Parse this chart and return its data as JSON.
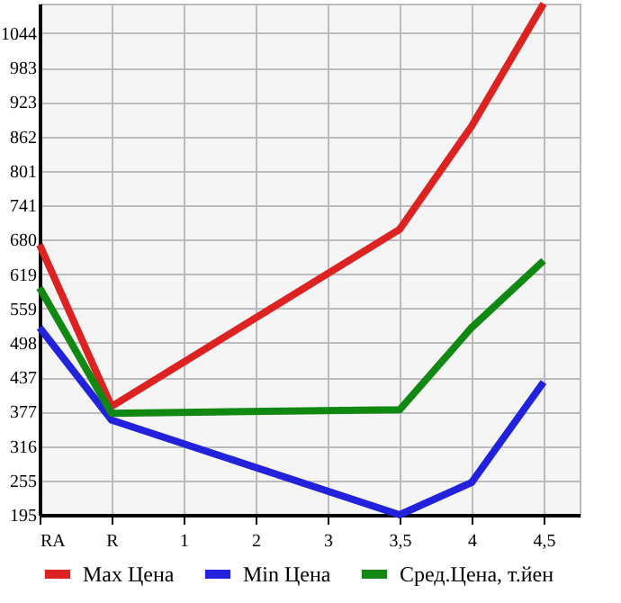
{
  "chart_data": {
    "type": "line",
    "categories": [
      "RA",
      "R",
      "1",
      "2",
      "3",
      "3,5",
      "4",
      "4,5"
    ],
    "series": [
      {
        "name": "Max Цена",
        "color": "#dd2222",
        "values": [
          671,
          386,
          null,
          null,
          null,
          698,
          880,
          1096
        ]
      },
      {
        "name": "Min Цена",
        "color": "#2222dd",
        "values": [
          525,
          362,
          null,
          null,
          null,
          195,
          252,
          429
        ]
      },
      {
        "name": "Сред.Цена, т.йен",
        "color": "#118811",
        "values": [
          595,
          374,
          null,
          null,
          null,
          380,
          525,
          643
        ]
      }
    ],
    "ylim": [
      195,
      1096
    ],
    "yticks": [
      195,
      255,
      316,
      377,
      437,
      498,
      559,
      619,
      680,
      741,
      801,
      862,
      923,
      983,
      1044
    ],
    "grid": true,
    "legend": "bottom",
    "marker": "none",
    "line_style": "solid"
  }
}
